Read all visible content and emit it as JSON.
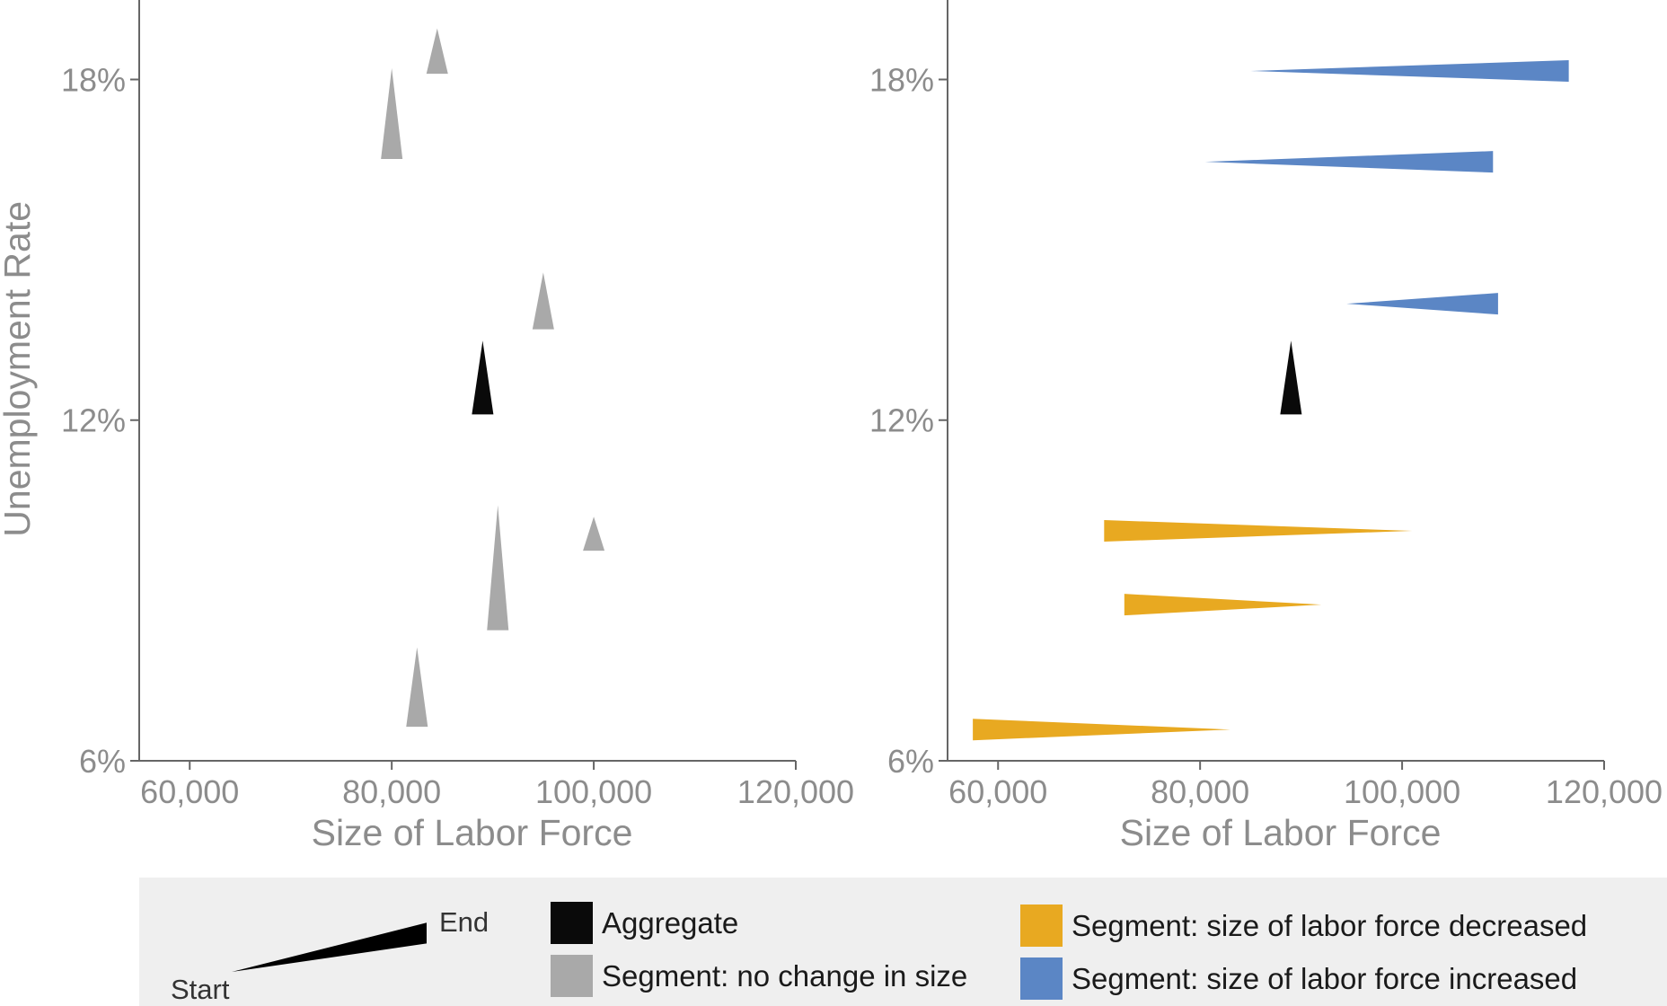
{
  "chart_data": [
    {
      "type": "scatter",
      "panel": "left",
      "xlabel": "Size of Labor Force",
      "ylabel": "Unemployment Rate",
      "xlim": [
        55000,
        120000
      ],
      "ylim": [
        6,
        19.4
      ],
      "x_ticks": [
        60000,
        80000,
        100000,
        120000
      ],
      "x_tick_labels": [
        "60,000",
        "80,000",
        "100,000",
        "120,000"
      ],
      "y_ticks": [
        6,
        12,
        18
      ],
      "y_tick_labels": [
        "6%",
        "12%",
        "18%"
      ],
      "series": [
        {
          "category": "aggregate",
          "segments": [
            {
              "start": [
                89000,
                13.4
              ],
              "end": [
                89000,
                12.1
              ]
            }
          ]
        },
        {
          "category": "no_change",
          "segments": [
            {
              "start": [
                84500,
                18.9
              ],
              "end": [
                84500,
                18.1
              ]
            },
            {
              "start": [
                80000,
                18.2
              ],
              "end": [
                80000,
                16.6
              ]
            },
            {
              "start": [
                95000,
                14.6
              ],
              "end": [
                95000,
                13.6
              ]
            },
            {
              "start": [
                90500,
                10.5
              ],
              "end": [
                90500,
                8.3
              ]
            },
            {
              "start": [
                100000,
                10.3
              ],
              "end": [
                100000,
                9.7
              ]
            },
            {
              "start": [
                82500,
                8.0
              ],
              "end": [
                82500,
                6.6
              ]
            }
          ]
        }
      ]
    },
    {
      "type": "scatter",
      "panel": "right",
      "xlabel": "Size of Labor Force",
      "ylabel": "",
      "xlim": [
        55000,
        120000
      ],
      "ylim": [
        6,
        19.4
      ],
      "x_ticks": [
        60000,
        80000,
        100000,
        120000
      ],
      "x_tick_labels": [
        "60,000",
        "80,000",
        "100,000",
        "120,000"
      ],
      "y_ticks": [
        6,
        12,
        18
      ],
      "y_tick_labels": [
        "6%",
        "12%",
        "18%"
      ],
      "series": [
        {
          "category": "aggregate",
          "segments": [
            {
              "start": [
                89000,
                13.4
              ],
              "end": [
                89000,
                12.1
              ]
            }
          ]
        },
        {
          "category": "increased",
          "segments": [
            {
              "start": [
                85000,
                18.15
              ],
              "end": [
                116500,
                18.15
              ]
            },
            {
              "start": [
                80500,
                16.55
              ],
              "end": [
                109000,
                16.55
              ]
            },
            {
              "start": [
                94500,
                14.05
              ],
              "end": [
                109500,
                14.05
              ]
            }
          ]
        },
        {
          "category": "decreased",
          "segments": [
            {
              "start": [
                101000,
                10.05
              ],
              "end": [
                70500,
                10.05
              ]
            },
            {
              "start": [
                92000,
                8.75
              ],
              "end": [
                72500,
                8.75
              ]
            },
            {
              "start": [
                83000,
                6.55
              ],
              "end": [
                57500,
                6.55
              ]
            }
          ]
        }
      ]
    }
  ],
  "colors": {
    "aggregate": "#0a0a0a",
    "no_change": "#a9a9a9",
    "decreased": "#e8a921",
    "increased": "#5b86c5",
    "axis": "#666666",
    "tick_label": "#8c8c8c",
    "legend_bg": "#efefef"
  },
  "legend": {
    "key_start": "Start",
    "key_end": "End",
    "items": [
      {
        "id": "aggregate",
        "label": "Aggregate"
      },
      {
        "id": "no_change",
        "label": "Segment: no change in size"
      },
      {
        "id": "decreased",
        "label": "Segment: size of labor force decreased"
      },
      {
        "id": "increased",
        "label": "Segment: size of labor force increased"
      }
    ]
  }
}
